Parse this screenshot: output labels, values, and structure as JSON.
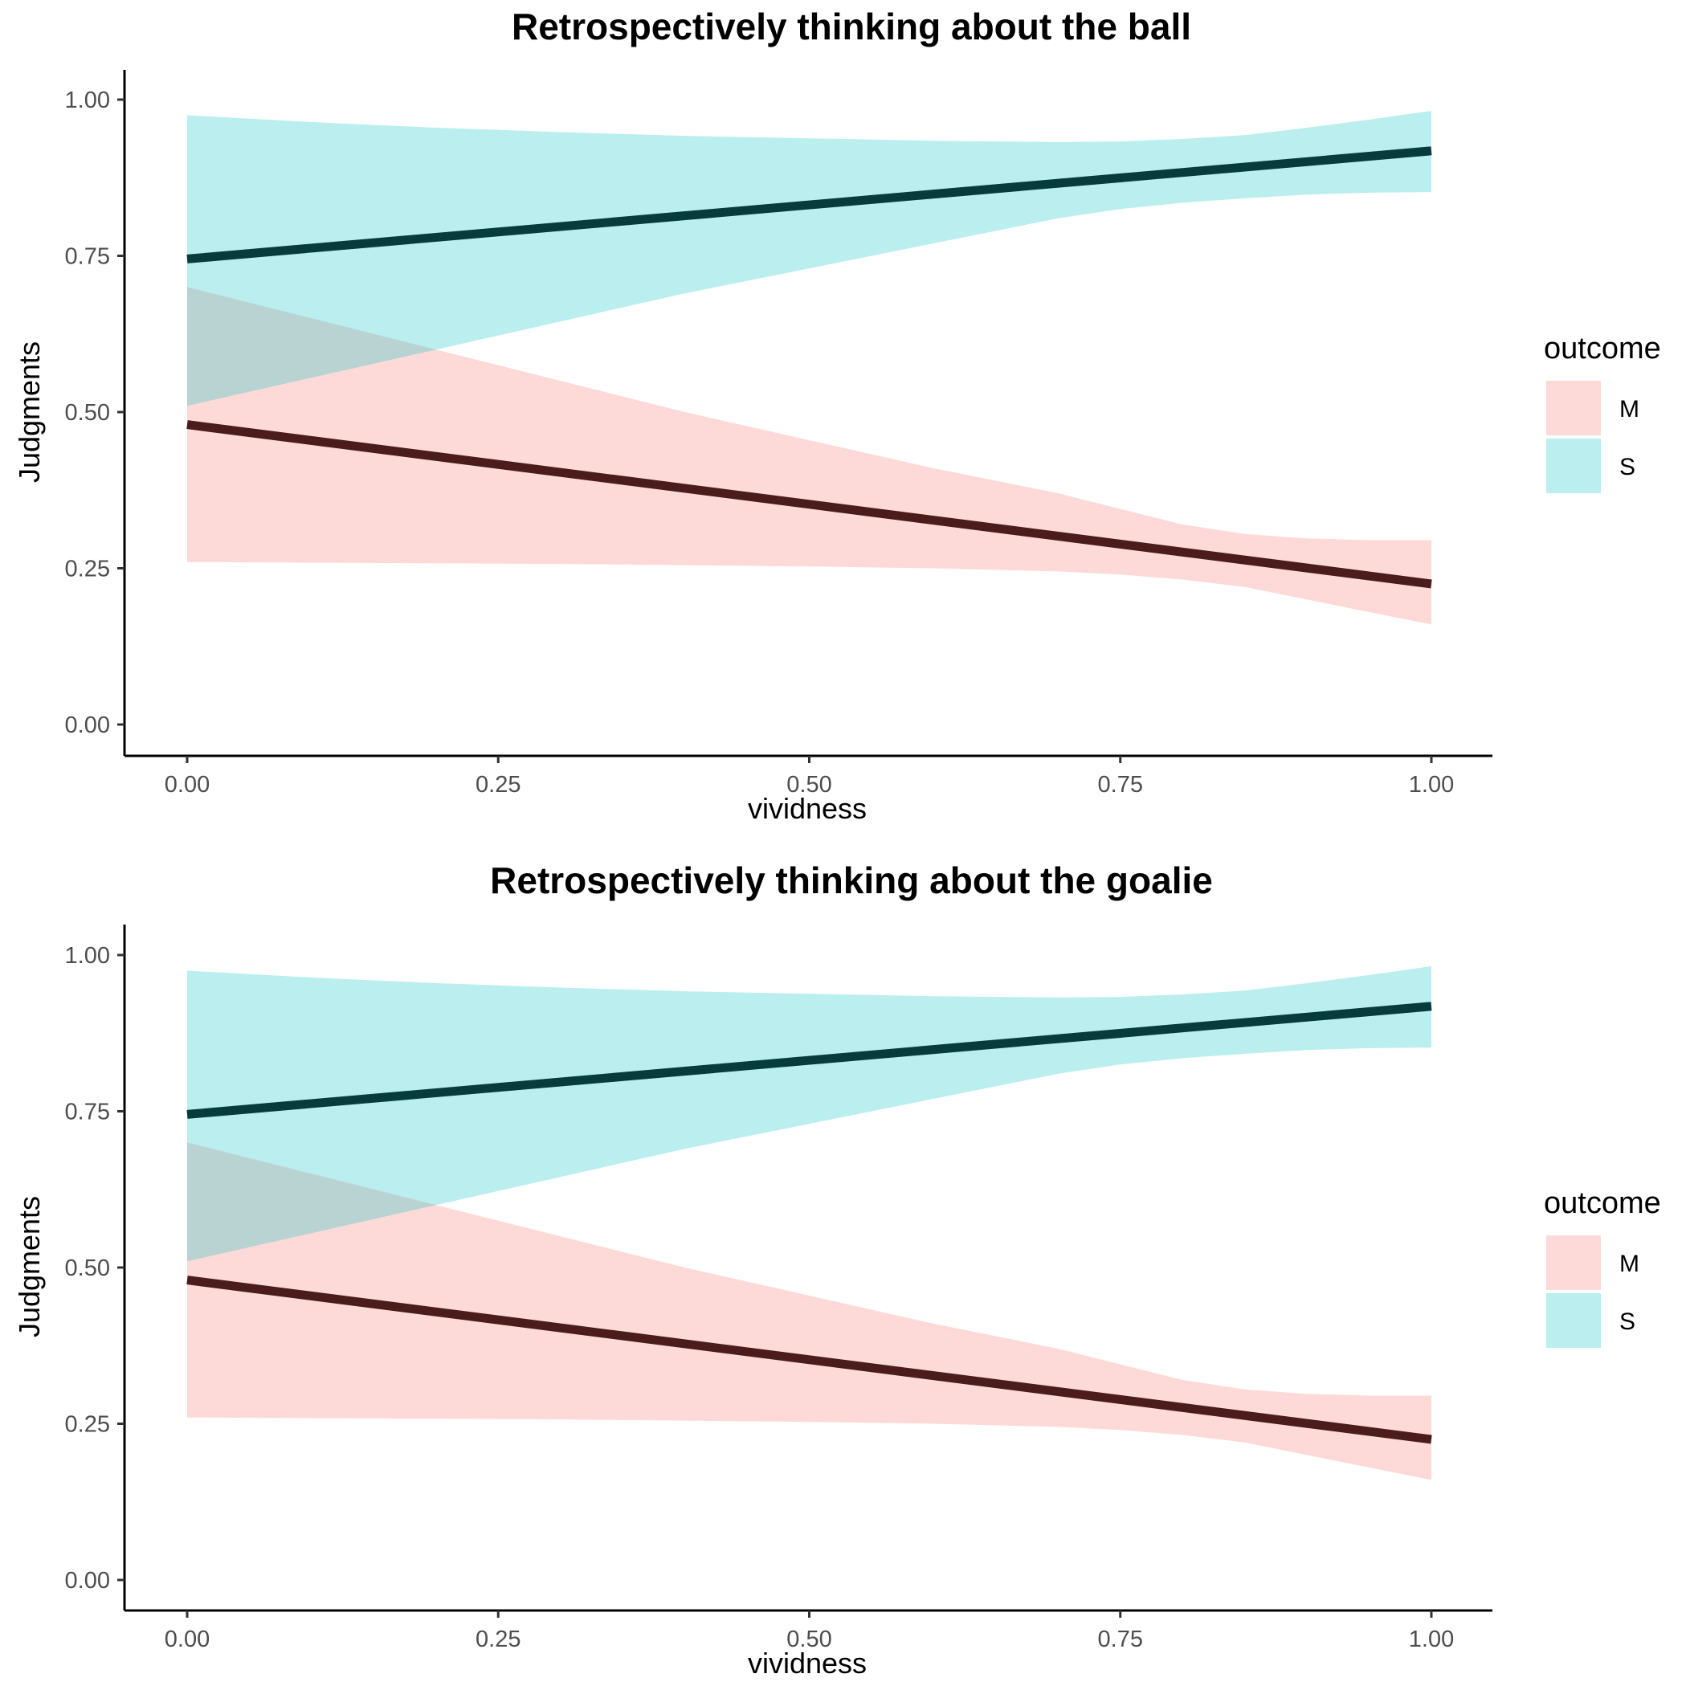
{
  "chart_data": [
    {
      "type": "line",
      "title": "Retrospectively thinking about the ball",
      "xlabel": "vividness",
      "ylabel": "Judgments",
      "xlim": [
        0,
        1
      ],
      "ylim": [
        0,
        1
      ],
      "xticks": [
        "0.00",
        "0.25",
        "0.50",
        "0.75",
        "1.00"
      ],
      "yticks": [
        "0.00",
        "0.25",
        "0.50",
        "0.75",
        "1.00"
      ],
      "grid": false,
      "legend": {
        "title": "outcome",
        "position": "right",
        "entries": [
          "M",
          "S"
        ]
      },
      "series": [
        {
          "name": "M",
          "x": [
            0,
            1
          ],
          "y": [
            0.48,
            0.225
          ],
          "ribbon_x": [
            0,
            0.1,
            0.2,
            0.3,
            0.4,
            0.5,
            0.6,
            0.7,
            0.75,
            0.8,
            0.85,
            0.9,
            0.95,
            1.0
          ],
          "ribbon_lower": [
            0.26,
            0.259,
            0.258,
            0.257,
            0.255,
            0.253,
            0.25,
            0.245,
            0.24,
            0.232,
            0.22,
            0.2,
            0.18,
            0.16
          ],
          "ribbon_upper": [
            0.7,
            0.65,
            0.6,
            0.55,
            0.5,
            0.455,
            0.41,
            0.37,
            0.345,
            0.32,
            0.305,
            0.298,
            0.295,
            0.295
          ],
          "ribbon_color": "#f8766d",
          "line_color": "#4a1c1c"
        },
        {
          "name": "S",
          "x": [
            0,
            1
          ],
          "y": [
            0.745,
            0.918
          ],
          "ribbon_x": [
            0,
            0.1,
            0.2,
            0.3,
            0.4,
            0.5,
            0.6,
            0.7,
            0.75,
            0.8,
            0.85,
            0.9,
            0.95,
            1.0
          ],
          "ribbon_lower": [
            0.51,
            0.555,
            0.6,
            0.645,
            0.69,
            0.73,
            0.77,
            0.81,
            0.825,
            0.835,
            0.842,
            0.848,
            0.851,
            0.852
          ],
          "ribbon_upper": [
            0.975,
            0.964,
            0.955,
            0.948,
            0.942,
            0.938,
            0.934,
            0.932,
            0.933,
            0.937,
            0.943,
            0.955,
            0.968,
            0.982
          ],
          "ribbon_color": "#00bfc4",
          "line_color": "#073c3c"
        }
      ]
    },
    {
      "type": "line",
      "title": "Retrospectively thinking about the goalie",
      "xlabel": "vividness",
      "ylabel": "Judgments",
      "xlim": [
        0,
        1
      ],
      "ylim": [
        0,
        1
      ],
      "xticks": [
        "0.00",
        "0.25",
        "0.50",
        "0.75",
        "1.00"
      ],
      "yticks": [
        "0.00",
        "0.25",
        "0.50",
        "0.75",
        "1.00"
      ],
      "grid": false,
      "legend": {
        "title": "outcome",
        "position": "right",
        "entries": [
          "M",
          "S"
        ]
      },
      "series": [
        {
          "name": "M",
          "x": [
            0,
            1
          ],
          "y": [
            0.48,
            0.225
          ],
          "ribbon_x": [
            0,
            0.1,
            0.2,
            0.3,
            0.4,
            0.5,
            0.6,
            0.7,
            0.75,
            0.8,
            0.85,
            0.9,
            0.95,
            1.0
          ],
          "ribbon_lower": [
            0.26,
            0.259,
            0.258,
            0.257,
            0.255,
            0.253,
            0.25,
            0.245,
            0.24,
            0.232,
            0.22,
            0.2,
            0.18,
            0.16
          ],
          "ribbon_upper": [
            0.7,
            0.65,
            0.6,
            0.55,
            0.5,
            0.455,
            0.41,
            0.37,
            0.345,
            0.32,
            0.305,
            0.298,
            0.295,
            0.295
          ],
          "ribbon_color": "#f8766d",
          "line_color": "#4a1c1c"
        },
        {
          "name": "S",
          "x": [
            0,
            1
          ],
          "y": [
            0.745,
            0.918
          ],
          "ribbon_x": [
            0,
            0.1,
            0.2,
            0.3,
            0.4,
            0.5,
            0.6,
            0.7,
            0.75,
            0.8,
            0.85,
            0.9,
            0.95,
            1.0
          ],
          "ribbon_lower": [
            0.51,
            0.555,
            0.6,
            0.645,
            0.69,
            0.73,
            0.77,
            0.81,
            0.825,
            0.835,
            0.842,
            0.848,
            0.851,
            0.852
          ],
          "ribbon_upper": [
            0.975,
            0.964,
            0.955,
            0.948,
            0.942,
            0.938,
            0.934,
            0.932,
            0.933,
            0.937,
            0.943,
            0.955,
            0.968,
            0.982
          ],
          "ribbon_color": "#00bfc4",
          "line_color": "#073c3c"
        }
      ]
    }
  ]
}
